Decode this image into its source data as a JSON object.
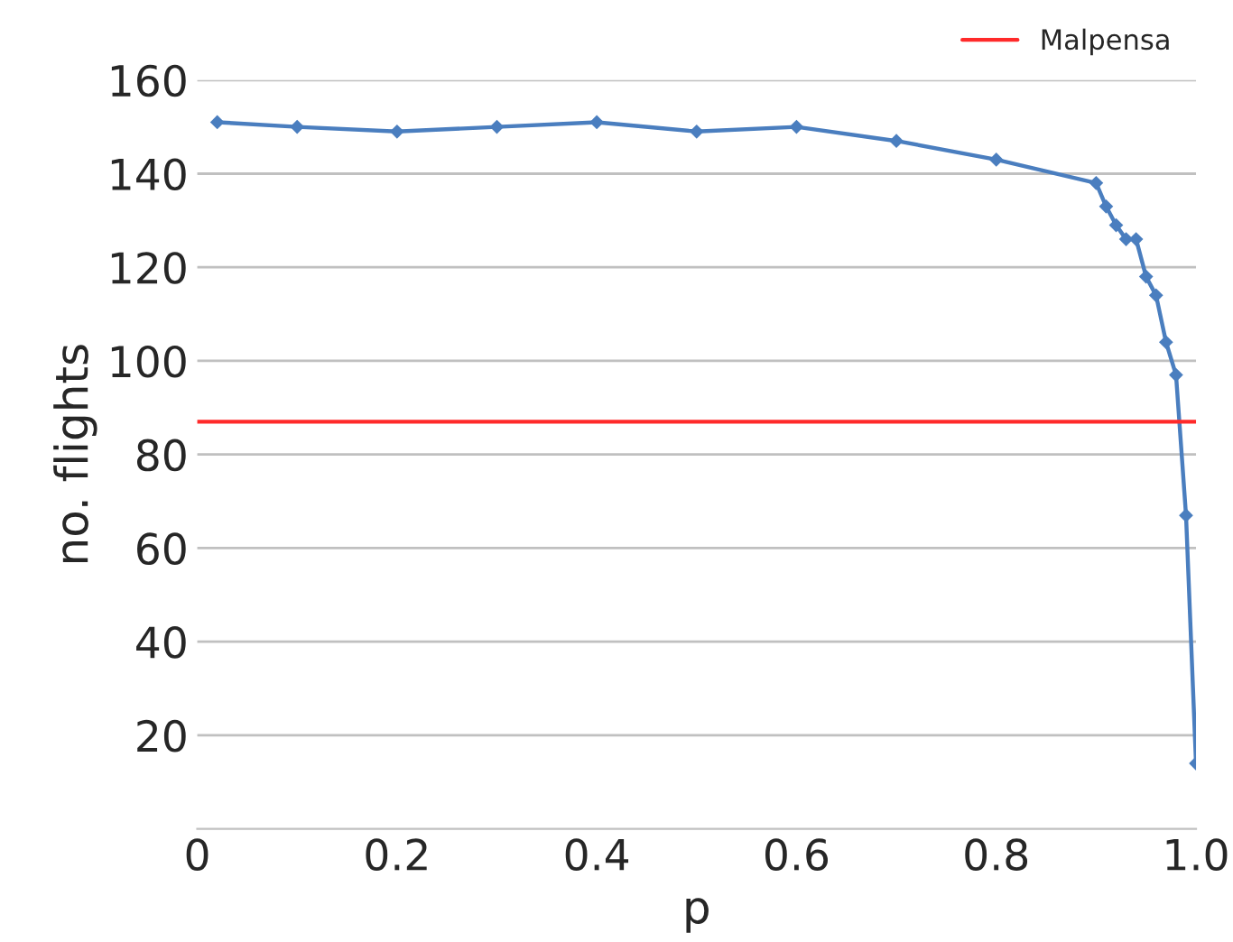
{
  "chart_data": {
    "type": "line",
    "xlabel": "p",
    "ylabel": "no. flights",
    "x": [
      0.02,
      0.1,
      0.2,
      0.3,
      0.4,
      0.5,
      0.6,
      0.7,
      0.8,
      0.9,
      0.91,
      0.92,
      0.93,
      0.94,
      0.95,
      0.96,
      0.97,
      0.98,
      0.99,
      1.0
    ],
    "series": [
      {
        "color": "#4a7ebf",
        "values": [
          151,
          150,
          149,
          150,
          151,
          149,
          150,
          147,
          143,
          138,
          133,
          129,
          126,
          126,
          118,
          114,
          104,
          97,
          67,
          14
        ]
      }
    ],
    "ref_lines": [
      {
        "axis": "y",
        "value": 87,
        "label": "Malpensa",
        "color": "#ff2a2a"
      }
    ],
    "xlim": [
      0,
      1.0
    ],
    "xticks": [
      0,
      0.2,
      0.4,
      0.6,
      0.8,
      {
        "value": 1.0,
        "label": "1.0"
      }
    ],
    "ylim": [
      0,
      160
    ],
    "yticks": [
      20,
      40,
      60,
      80,
      100,
      120,
      140,
      160
    ],
    "grid": "y",
    "legend": "top right",
    "marker": "diamond",
    "line_style": "solid"
  }
}
